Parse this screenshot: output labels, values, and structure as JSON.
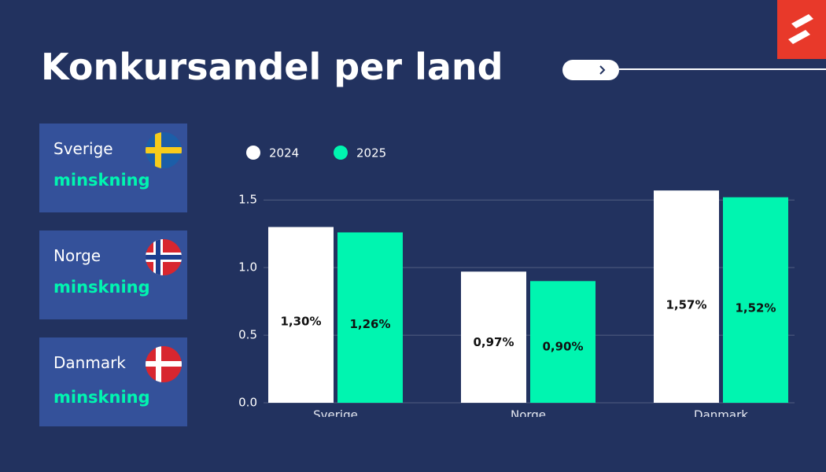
{
  "header": {
    "title": "Konkursandel per land"
  },
  "cards": [
    {
      "country": "Sverige",
      "status": "minskning"
    },
    {
      "country": "Norge",
      "status": "minskning"
    },
    {
      "country": "Danmark",
      "status": "minskning"
    }
  ],
  "chart_data": {
    "type": "bar",
    "categories": [
      "Sverige",
      "Norge",
      "Danmark"
    ],
    "series": [
      {
        "name": "2024",
        "color": "#ffffff",
        "values": [
          1.3,
          0.97,
          1.57
        ],
        "value_labels": [
          "1,30%",
          "0,97%",
          "1,57%"
        ]
      },
      {
        "name": "2025",
        "color": "#00f5b0",
        "values": [
          1.26,
          0.9,
          1.52
        ],
        "value_labels": [
          "1,26%",
          "0,90%",
          "1,52%"
        ]
      }
    ],
    "ylim": [
      0,
      1.6
    ],
    "yticks": [
      {
        "value": 0,
        "label": "0.0"
      },
      0.5,
      {
        "value": 1,
        "label": "1.0"
      },
      1.5
    ],
    "grid": true
  }
}
